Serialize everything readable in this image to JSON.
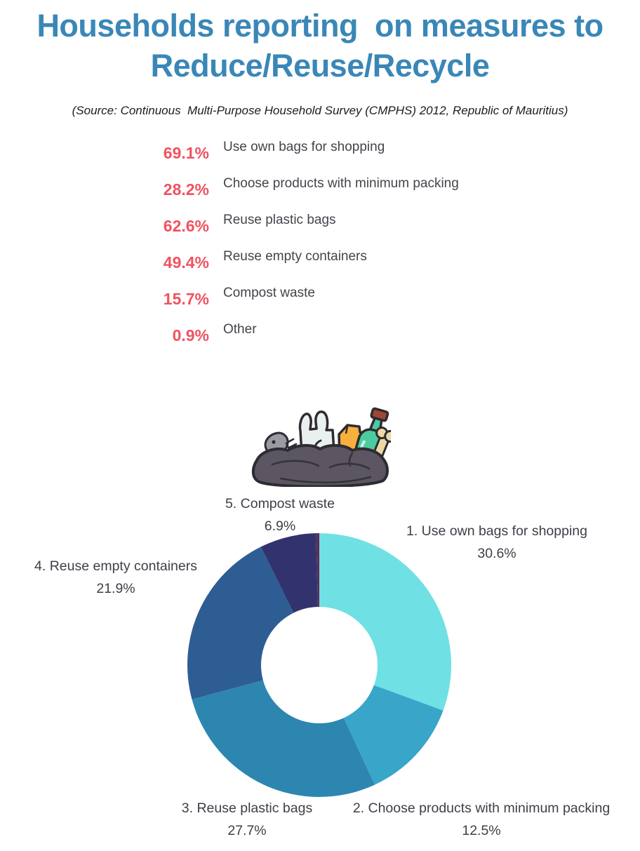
{
  "title": {
    "line1": "Households reporting  on measures to",
    "line2": "Reduce/Reuse/Recycle",
    "color": "#3a87b7"
  },
  "source": "(Source: Continuous  Multi-Purpose Household Survey (CMPHS) 2012, Republic of Mauritius)",
  "accent_colors": {
    "title_blue": "#3a87b7",
    "stat_value_red": "#ef5360",
    "body_text": "#44444c"
  },
  "measures": [
    {
      "value": "69.1%",
      "label": "Use own bags for shopping"
    },
    {
      "value": "28.2%",
      "label": "Choose products with minimum packing"
    },
    {
      "value": "62.6%",
      "label": "Reuse plastic bags"
    },
    {
      "value": "49.4%",
      "label": "Reuse empty containers"
    },
    {
      "value": "15.7%",
      "label": "Compost waste"
    },
    {
      "value": "0.9%",
      "label": "Other"
    }
  ],
  "illustration": "trash-bag-with-waste-items",
  "chart_data": {
    "type": "pie",
    "subtype": "donut",
    "legend_position": "around-labels",
    "start_angle_deg": 0,
    "direction": "clockwise",
    "slices": [
      {
        "label": "1. Use own bags for shopping",
        "pct_label": "30.6%",
        "value": 30.6,
        "color": "#6fe0e4"
      },
      {
        "label": "2. Choose products with minimum packing",
        "pct_label": "12.5%",
        "value": 12.5,
        "color": "#39a5c8"
      },
      {
        "label": "3. Reuse plastic bags",
        "pct_label": "27.7%",
        "value": 27.7,
        "color": "#2d86b0"
      },
      {
        "label": "4. Reuse empty containers",
        "pct_label": "21.9%",
        "value": 21.9,
        "color": "#2e5d94"
      },
      {
        "label": "5. Compost waste",
        "pct_label": "6.9%",
        "value": 6.9,
        "color": "#32336e"
      },
      {
        "label": "",
        "pct_label": "",
        "value": 0.4,
        "color": "#5e2c57"
      }
    ]
  }
}
